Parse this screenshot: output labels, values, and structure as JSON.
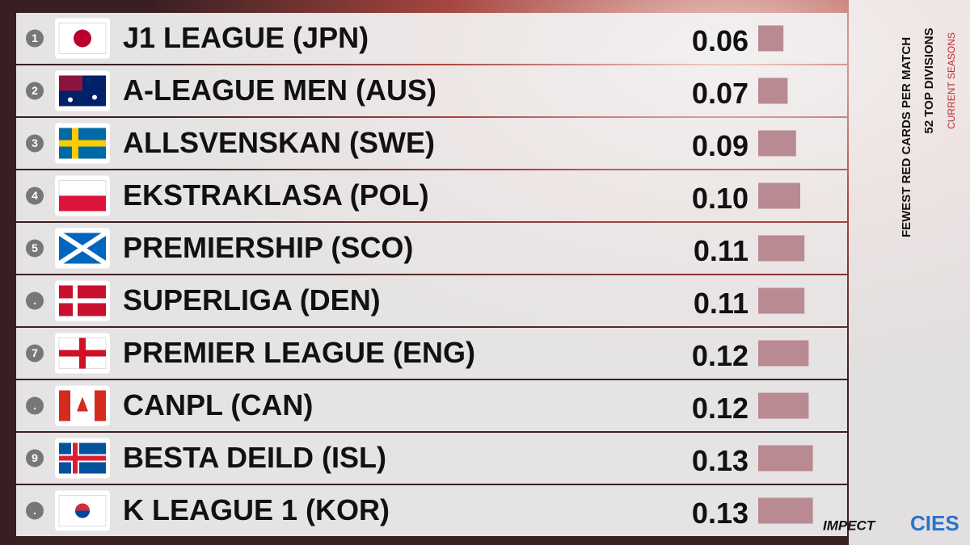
{
  "chart_data": {
    "type": "bar",
    "orientation": "horizontal",
    "title": "FEWEST RED CARDS PER MATCH",
    "subtitle": "52 TOP DIVISIONS",
    "note": "CURRENT SEASONS",
    "ranks": [
      "1",
      "2",
      "3",
      "4",
      "5",
      ".",
      "7",
      ".",
      "9",
      "."
    ],
    "categories": [
      "J1 LEAGUE (JPN)",
      "A-LEAGUE MEN (AUS)",
      "ALLSVENSKAN (SWE)",
      "EKSTRAKLASA (POL)",
      "PREMIERSHIP (SCO)",
      "SUPERLIGA (DEN)",
      "PREMIER LEAGUE (ENG)",
      "CANPL (CAN)",
      "BESTA DEILD (ISL)",
      "K LEAGUE 1 (KOR)"
    ],
    "values": [
      0.06,
      0.07,
      0.09,
      0.1,
      0.11,
      0.11,
      0.12,
      0.12,
      0.13,
      0.13
    ],
    "value_labels": [
      "0.06",
      "0.07",
      "0.09",
      "0.10",
      "0.11",
      "0.11",
      "0.12",
      "0.12",
      "0.13",
      "0.13"
    ],
    "color": "#b98a92",
    "logos": [
      "IMPECT",
      "CIES"
    ]
  }
}
